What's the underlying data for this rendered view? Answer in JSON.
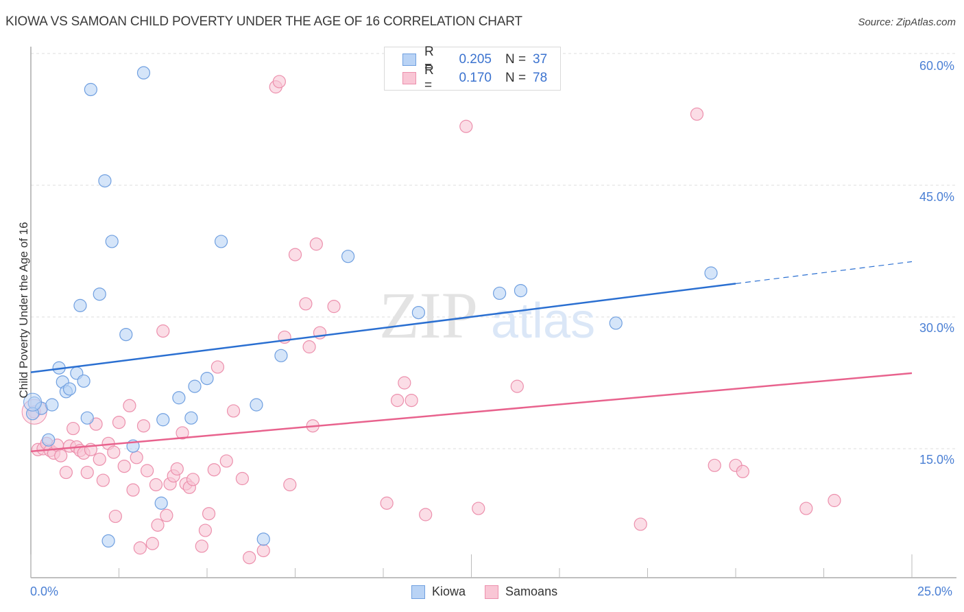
{
  "header": {
    "title": "KIOWA VS SAMOAN CHILD POVERTY UNDER THE AGE OF 16 CORRELATION CHART",
    "source": "Source: ZipAtlas.com"
  },
  "watermark": {
    "zip": "ZIP",
    "atlas": "atlas"
  },
  "colors": {
    "kiowa_fill": "#b9d3f5",
    "kiowa_stroke": "#6f9fe0",
    "kiowa_line": "#2a6fd1",
    "samoans_fill": "#f9c6d5",
    "samoans_stroke": "#ec8fac",
    "samoans_line": "#e8628d",
    "tick_label": "#4a7fd4",
    "grid": "#dddddd"
  },
  "legend_top": {
    "rows": [
      {
        "series": "Kiowa",
        "r_label": "R =",
        "r_value": "0.205",
        "n_label": "N =",
        "n_value": "37"
      },
      {
        "series": "Samoans",
        "r_label": "R =",
        "r_value": "0.170",
        "n_label": "N =",
        "n_value": "78"
      }
    ]
  },
  "legend_bottom": {
    "items": [
      "Kiowa",
      "Samoans"
    ]
  },
  "axes": {
    "ylabel": "Child Poverty Under the Age of 16",
    "y_ticks": [
      "60.0%",
      "45.0%",
      "30.0%",
      "15.0%"
    ],
    "x_ticks": [
      "0.0%",
      "25.0%"
    ]
  },
  "chart_data": {
    "type": "scatter",
    "title": "KIOWA VS SAMOAN CHILD POVERTY UNDER THE AGE OF 16 CORRELATION CHART",
    "xlabel": "",
    "ylabel": "Child Poverty Under the Age of 16",
    "xlim": [
      0,
      25
    ],
    "ylim": [
      0,
      60
    ],
    "x_unit": "%",
    "y_unit": "%",
    "grid": {
      "y": true,
      "x": false,
      "style": "dashed"
    },
    "legend_position": "top-center and bottom",
    "series": [
      {
        "name": "Kiowa",
        "R": 0.205,
        "N": 37,
        "trendline": {
          "x": [
            0,
            20
          ],
          "y": [
            23.7,
            33.8
          ],
          "extrapolated_dashed_to": [
            25,
            36.3
          ]
        },
        "points": [
          [
            0.1,
            20.2
          ],
          [
            0.3,
            19.6
          ],
          [
            0.5,
            16.0
          ],
          [
            0.6,
            20.0
          ],
          [
            0.8,
            24.2
          ],
          [
            0.9,
            22.6
          ],
          [
            1.0,
            21.5
          ],
          [
            1.1,
            21.8
          ],
          [
            1.3,
            23.6
          ],
          [
            1.5,
            22.7
          ],
          [
            1.6,
            18.5
          ],
          [
            1.4,
            31.3
          ],
          [
            1.7,
            55.9
          ],
          [
            1.95,
            32.6
          ],
          [
            2.1,
            45.5
          ],
          [
            2.3,
            38.6
          ],
          [
            2.2,
            4.5
          ],
          [
            2.7,
            28.0
          ],
          [
            2.9,
            15.3
          ],
          [
            3.2,
            57.8
          ],
          [
            3.7,
            8.8
          ],
          [
            3.75,
            18.3
          ],
          [
            4.2,
            20.8
          ],
          [
            4.55,
            18.5
          ],
          [
            4.65,
            22.1
          ],
          [
            5.0,
            23.0
          ],
          [
            5.4,
            38.6
          ],
          [
            6.4,
            20.0
          ],
          [
            6.6,
            4.7
          ],
          [
            7.1,
            25.6
          ],
          [
            9.0,
            36.9
          ],
          [
            11.0,
            30.5
          ],
          [
            13.3,
            32.7
          ],
          [
            13.9,
            33.0
          ],
          [
            16.6,
            29.3
          ],
          [
            19.3,
            35.0
          ],
          [
            0.05,
            19.0
          ]
        ]
      },
      {
        "name": "Samoans",
        "R": 0.17,
        "N": 78,
        "trendline": {
          "x": [
            0,
            25
          ],
          "y": [
            14.7,
            23.6
          ]
        },
        "points": [
          [
            0.1,
            19.2
          ],
          [
            0.2,
            14.9
          ],
          [
            0.35,
            15.0
          ],
          [
            0.45,
            15.6
          ],
          [
            0.55,
            14.8
          ],
          [
            0.65,
            14.5
          ],
          [
            0.75,
            15.4
          ],
          [
            0.85,
            14.2
          ],
          [
            1.0,
            12.3
          ],
          [
            1.1,
            15.3
          ],
          [
            1.2,
            17.3
          ],
          [
            1.3,
            15.2
          ],
          [
            1.4,
            14.8
          ],
          [
            1.5,
            14.5
          ],
          [
            1.6,
            12.3
          ],
          [
            1.7,
            14.9
          ],
          [
            1.85,
            17.8
          ],
          [
            1.95,
            13.8
          ],
          [
            2.05,
            11.4
          ],
          [
            2.2,
            15.6
          ],
          [
            2.35,
            14.6
          ],
          [
            2.4,
            7.3
          ],
          [
            2.5,
            18.0
          ],
          [
            2.65,
            13.0
          ],
          [
            2.8,
            19.9
          ],
          [
            2.9,
            10.3
          ],
          [
            3.0,
            14.0
          ],
          [
            3.1,
            3.7
          ],
          [
            3.2,
            17.6
          ],
          [
            3.3,
            12.5
          ],
          [
            3.45,
            4.2
          ],
          [
            3.55,
            10.9
          ],
          [
            3.6,
            6.3
          ],
          [
            3.75,
            28.4
          ],
          [
            3.85,
            7.4
          ],
          [
            3.95,
            11.0
          ],
          [
            4.05,
            11.9
          ],
          [
            4.15,
            12.7
          ],
          [
            4.3,
            16.8
          ],
          [
            4.4,
            11.0
          ],
          [
            4.5,
            10.6
          ],
          [
            4.6,
            11.5
          ],
          [
            4.85,
            3.9
          ],
          [
            4.95,
            5.7
          ],
          [
            5.05,
            7.6
          ],
          [
            5.2,
            12.6
          ],
          [
            5.3,
            24.3
          ],
          [
            5.55,
            13.6
          ],
          [
            5.75,
            19.3
          ],
          [
            6.0,
            11.6
          ],
          [
            6.2,
            2.6
          ],
          [
            6.6,
            3.4
          ],
          [
            6.95,
            56.2
          ],
          [
            7.05,
            56.8
          ],
          [
            7.2,
            27.7
          ],
          [
            7.35,
            10.9
          ],
          [
            7.5,
            37.1
          ],
          [
            7.8,
            31.5
          ],
          [
            7.9,
            26.6
          ],
          [
            8.1,
            38.3
          ],
          [
            8.0,
            17.6
          ],
          [
            8.2,
            28.2
          ],
          [
            8.6,
            31.2
          ],
          [
            10.1,
            8.8
          ],
          [
            10.4,
            20.5
          ],
          [
            10.6,
            22.5
          ],
          [
            10.8,
            20.5
          ],
          [
            11.2,
            7.5
          ],
          [
            12.35,
            51.7
          ],
          [
            12.7,
            8.2
          ],
          [
            13.8,
            22.1
          ],
          [
            17.3,
            6.4
          ],
          [
            18.9,
            53.1
          ],
          [
            19.4,
            13.1
          ],
          [
            20.0,
            13.1
          ],
          [
            20.2,
            12.4
          ],
          [
            22.0,
            8.2
          ],
          [
            22.8,
            9.1
          ]
        ]
      }
    ]
  }
}
